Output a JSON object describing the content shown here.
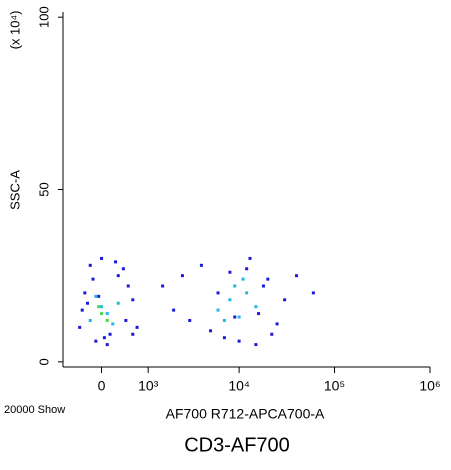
{
  "chart_data": {
    "type": "scatter",
    "title": "CD3-AF700",
    "x_label": "AF700 R712-APCA700-A",
    "y_label": "SSC-A",
    "y_unit_label": "(x 10⁴)",
    "event_note": "20000 Show",
    "xscale": "biexponential",
    "xlim": [
      -775,
      1000000
    ],
    "xticks": [
      0,
      {
        "value": 1000,
        "label": "10³"
      },
      {
        "value": 10000,
        "label": "10⁴"
      },
      {
        "value": 100000,
        "label": "10⁵"
      },
      {
        "value": 1000000,
        "label": "10⁶"
      }
    ],
    "ylim": [
      -1.5,
      101.5
    ],
    "yticks": [
      0,
      50,
      100
    ],
    "series": [
      {
        "color": "#1a1ad8",
        "x": [
          -400,
          -300,
          -200,
          -100,
          0,
          150,
          300,
          450,
          600,
          -350,
          -150,
          50,
          250,
          500,
          700,
          -250,
          100,
          400,
          -50,
          600,
          1500,
          2000,
          2500,
          3000,
          4000,
          5000,
          6000,
          8000,
          10000,
          13000,
          16000,
          20000,
          25000,
          30000,
          7000,
          12000,
          18000,
          9000,
          15000,
          22000,
          40000,
          60000
        ],
        "values": [
          10,
          20,
          28,
          6,
          30,
          8,
          25,
          12,
          18,
          15,
          24,
          7,
          29,
          22,
          10,
          17,
          5,
          27,
          19,
          8,
          22,
          15,
          25,
          12,
          28,
          9,
          20,
          26,
          6,
          30,
          14,
          24,
          11,
          18,
          7,
          27,
          22,
          13,
          5,
          8,
          25,
          20
        ]
      },
      {
        "color": "#20b8e0",
        "x": [
          -200,
          0,
          200,
          -100,
          100,
          300,
          6000,
          8000,
          10000,
          12000,
          15000,
          9000,
          7000,
          11000
        ],
        "values": [
          12,
          16,
          11,
          19,
          14,
          17,
          15,
          18,
          13,
          20,
          16,
          22,
          12,
          24
        ]
      },
      {
        "color": "#50d848",
        "x": [
          0,
          100,
          -50
        ],
        "values": [
          14,
          12,
          16
        ]
      }
    ]
  }
}
